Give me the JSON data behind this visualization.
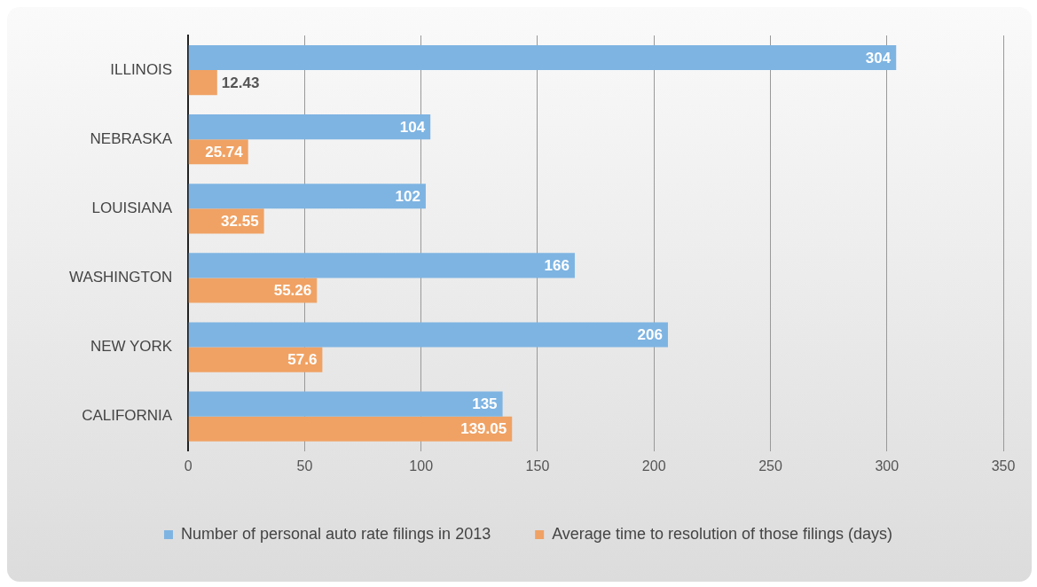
{
  "chart_data": {
    "type": "bar",
    "orientation": "horizontal",
    "categories": [
      "ILLINOIS",
      "NEBRASKA",
      "LOUISIANA",
      "WASHINGTON",
      "NEW YORK",
      "CALIFORNIA"
    ],
    "series": [
      {
        "name": "Number of personal auto rate filings in 2013",
        "color": "#7eb4e2",
        "values": [
          304,
          104,
          102,
          166,
          206,
          135
        ]
      },
      {
        "name": "Average time to resolution of those filings (days)",
        "color": "#f0a264",
        "values": [
          12.43,
          25.74,
          32.55,
          55.26,
          57.6,
          139.05
        ]
      }
    ],
    "xlim": [
      0,
      350
    ],
    "xticks": [
      0,
      50,
      100,
      150,
      200,
      250,
      300,
      350
    ],
    "grid": "x",
    "legend": "bottom",
    "data_labels": true
  }
}
